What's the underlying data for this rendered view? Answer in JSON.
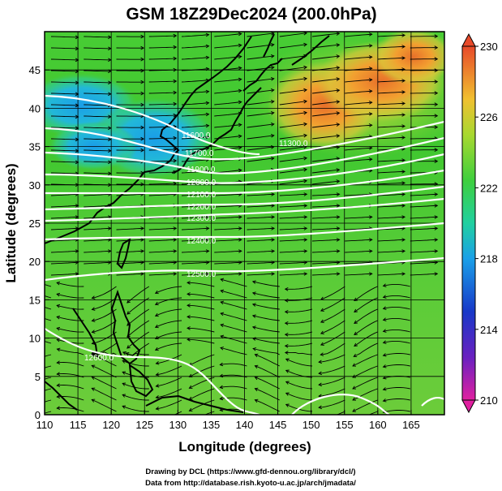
{
  "title": "GSM 18Z29Dec2024 (200.0hPa)",
  "xlabel": "Longitude (degrees)",
  "ylabel": "Latitude  (degrees)",
  "x_ticks": [
    "110",
    "115",
    "120",
    "125",
    "130",
    "135",
    "140",
    "145",
    "150",
    "155",
    "160",
    "165"
  ],
  "y_ticks": [
    "0",
    "5",
    "10",
    "15",
    "20",
    "25",
    "30",
    "35",
    "40",
    "45"
  ],
  "colorbar_ticks": [
    "230",
    "226",
    "222",
    "218",
    "214",
    "210"
  ],
  "contour_labels": [
    "11600.0",
    "11700.0",
    "11900.0",
    "12000.0",
    "12100.0",
    "12200.0",
    "12300.0",
    "12400.0",
    "12500.0",
    "12600.0",
    "11300.0"
  ],
  "credit_line1": "Drawing by DCL (https://www.gfd-dennou.org/library/dcl/)",
  "credit_line2": "Data from http://database.rish.kyoto-u.ac.jp/arch/jmadata/",
  "chart_data": {
    "type": "heatmap",
    "title": "GSM 18Z29Dec2024 (200.0hPa)",
    "xlabel": "Longitude (degrees)",
    "ylabel": "Latitude  (degrees)",
    "xlim": [
      110,
      170
    ],
    "ylim": [
      0,
      50
    ],
    "colorbar_range": [
      210,
      230
    ],
    "grid": true,
    "contour_levels": [
      11300,
      11600,
      11700,
      11800,
      11900,
      12000,
      12100,
      12200,
      12300,
      12400,
      12500,
      12600
    ],
    "colors": {
      "cold": "#1fa0e0",
      "mid": "#3ecf3e",
      "warm": "#f2a02a",
      "hot": "#e8502a"
    }
  }
}
